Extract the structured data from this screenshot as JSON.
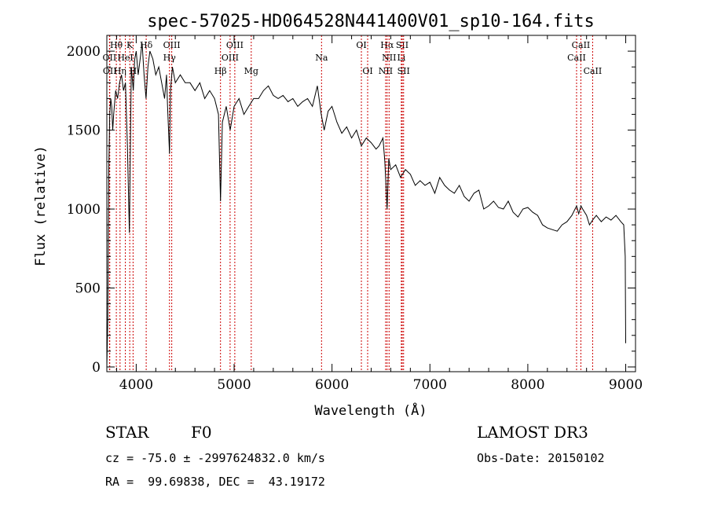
{
  "chart_data": {
    "type": "line",
    "title": "spec-57025-HD064528N441400V01_sp10-164.fits",
    "xlabel": "Wavelength (Å)",
    "ylabel": "Flux (relative)",
    "xlim": [
      3700,
      9100
    ],
    "ylim": [
      -30,
      2100
    ],
    "xticks": [
      4000,
      5000,
      6000,
      7000,
      8000,
      9000
    ],
    "yticks": [
      0,
      500,
      1000,
      1500,
      2000
    ],
    "grid": false,
    "series": [
      {
        "name": "flux",
        "x": [
          3700,
          3710,
          3720,
          3730,
          3740,
          3750,
          3760,
          3770,
          3790,
          3810,
          3830,
          3850,
          3870,
          3890,
          3910,
          3930,
          3950,
          3970,
          3985,
          4000,
          4020,
          4040,
          4060,
          4080,
          4100,
          4120,
          4140,
          4170,
          4200,
          4230,
          4260,
          4290,
          4310,
          4320,
          4340,
          4350,
          4370,
          4400,
          4450,
          4500,
          4550,
          4600,
          4650,
          4700,
          4750,
          4800,
          4840,
          4861,
          4880,
          4920,
          4960,
          5000,
          5050,
          5100,
          5150,
          5200,
          5250,
          5300,
          5350,
          5400,
          5450,
          5500,
          5550,
          5600,
          5650,
          5700,
          5750,
          5800,
          5850,
          5890,
          5920,
          5960,
          6000,
          6050,
          6100,
          6150,
          6200,
          6250,
          6300,
          6350,
          6400,
          6450,
          6480,
          6520,
          6540,
          6563,
          6580,
          6600,
          6650,
          6700,
          6750,
          6800,
          6850,
          6900,
          6950,
          7000,
          7050,
          7100,
          7150,
          7200,
          7250,
          7300,
          7350,
          7400,
          7450,
          7500,
          7550,
          7600,
          7650,
          7700,
          7750,
          7800,
          7850,
          7900,
          7950,
          8000,
          8050,
          8100,
          8150,
          8200,
          8250,
          8300,
          8350,
          8400,
          8450,
          8498,
          8520,
          8542,
          8560,
          8600,
          8630,
          8662,
          8700,
          8750,
          8800,
          8850,
          8900,
          8950,
          8980,
          8995,
          9000
        ],
        "y": [
          0,
          300,
          1250,
          1600,
          1700,
          1650,
          1500,
          1600,
          1750,
          1700,
          1800,
          1850,
          1750,
          1800,
          1400,
          850,
          1900,
          1750,
          1950,
          2000,
          1850,
          1950,
          2050,
          1850,
          1700,
          1900,
          2000,
          1950,
          1850,
          1900,
          1800,
          1700,
          1850,
          1650,
          1350,
          1750,
          1900,
          1800,
          1850,
          1800,
          1800,
          1750,
          1800,
          1700,
          1750,
          1700,
          1600,
          1050,
          1550,
          1650,
          1500,
          1650,
          1700,
          1600,
          1650,
          1700,
          1700,
          1750,
          1780,
          1720,
          1700,
          1720,
          1680,
          1700,
          1650,
          1680,
          1700,
          1650,
          1780,
          1600,
          1500,
          1620,
          1650,
          1550,
          1480,
          1520,
          1450,
          1500,
          1400,
          1450,
          1420,
          1380,
          1400,
          1450,
          1300,
          1000,
          1320,
          1250,
          1280,
          1200,
          1250,
          1220,
          1150,
          1180,
          1150,
          1170,
          1100,
          1200,
          1150,
          1120,
          1100,
          1150,
          1080,
          1050,
          1100,
          1120,
          1000,
          1020,
          1050,
          1010,
          1000,
          1050,
          980,
          950,
          1000,
          1010,
          980,
          960,
          900,
          880,
          870,
          860,
          900,
          920,
          960,
          1020,
          970,
          1020,
          1000,
          960,
          900,
          930,
          960,
          920,
          950,
          930,
          960,
          920,
          900,
          700,
          150
        ]
      }
    ],
    "spectral_lines": [
      {
        "label": "Hθ",
        "x": 3797,
        "row": 1
      },
      {
        "label": "OII",
        "x": 3727,
        "row": 2
      },
      {
        "label": "OII",
        "x": 3730,
        "row": 3
      },
      {
        "label": "K",
        "x": 3934,
        "row": 1
      },
      {
        "label": "HeI",
        "x": 3889,
        "row": 2
      },
      {
        "label": "Hη",
        "x": 3835,
        "row": 3
      },
      {
        "label": "Hδ",
        "x": 4102,
        "row": 1
      },
      {
        "label": "H",
        "x": 3968,
        "row": 3
      },
      {
        "label": "OIII",
        "x": 4363,
        "row": 1
      },
      {
        "label": "Hγ",
        "x": 4340,
        "row": 2
      },
      {
        "label": "OIII",
        "x": 5007,
        "row": 1
      },
      {
        "label": "OIII",
        "x": 4959,
        "row": 2
      },
      {
        "label": "Hβ",
        "x": 4861,
        "row": 3
      },
      {
        "label": "Mg",
        "x": 5175,
        "row": 3
      },
      {
        "label": "Na",
        "x": 5893,
        "row": 2
      },
      {
        "label": "OI",
        "x": 6300,
        "row": 1
      },
      {
        "label": "OI",
        "x": 6364,
        "row": 3
      },
      {
        "label": "Hα",
        "x": 6563,
        "row": 1
      },
      {
        "label": "SII",
        "x": 6717,
        "row": 1
      },
      {
        "label": "NII",
        "x": 6583,
        "row": 2
      },
      {
        "label": "Li",
        "x": 6708,
        "row": 2
      },
      {
        "label": "NII",
        "x": 6548,
        "row": 3
      },
      {
        "label": "SII",
        "x": 6731,
        "row": 3
      },
      {
        "label": "CaII",
        "x": 8542,
        "row": 1
      },
      {
        "label": "CaII",
        "x": 8498,
        "row": 2
      },
      {
        "label": "CaII",
        "x": 8662,
        "row": 3
      }
    ]
  },
  "info": {
    "object_class": "STAR",
    "subclass": "F0",
    "survey": "LAMOST DR3",
    "velocity_line": "cz = -75.0 ± -2997624832.0 km/s",
    "obs_date_line": "Obs-Date: 20150102",
    "coords_line": "RA =  99.69838, DEC =  43.19172"
  },
  "colors": {
    "spectrum": "#000000",
    "line_marker": "#cc0000",
    "axis": "#000000",
    "background": "#ffffff"
  }
}
